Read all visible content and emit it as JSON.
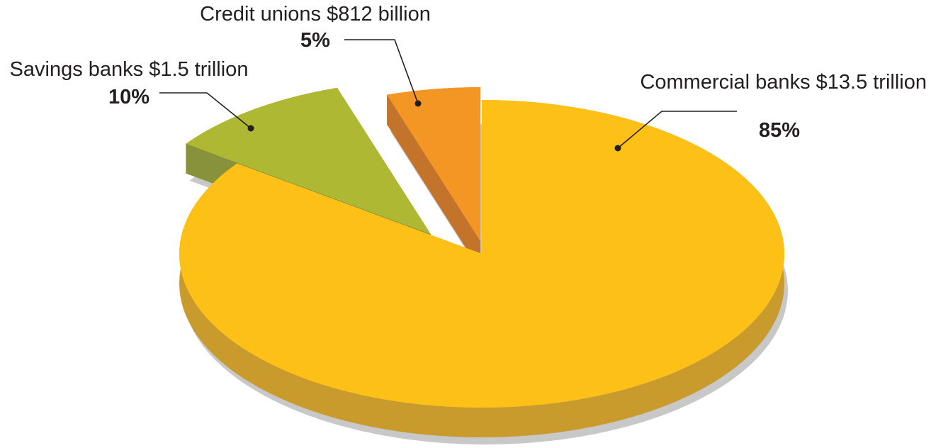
{
  "chart_data": {
    "type": "pie",
    "style": "3d-exploded",
    "slices": [
      {
        "category": "Commercial banks",
        "amount": "$13.5 trillion",
        "percent": 85,
        "percent_label": "85%",
        "color": "#fcc016",
        "side_color": "#c99a2c"
      },
      {
        "category": "Savings banks",
        "amount": "$1.5 trillion",
        "percent": 10,
        "percent_label": "10%",
        "color": "#afb833",
        "side_color": "#88923a"
      },
      {
        "category": "Credit unions",
        "amount": "$812 billion",
        "percent": 5,
        "percent_label": "5%",
        "color": "#f39623",
        "side_color": "#c4742a"
      }
    ],
    "labels": [
      {
        "text": "Commercial banks $13.5 trillion",
        "percent_text": "85%"
      },
      {
        "text": "Savings banks $1.5 trillion",
        "percent_text": "10%"
      },
      {
        "text": "Credit unions $812 billion",
        "percent_text": "5%"
      }
    ],
    "shadow_color": "#c8c8c8",
    "line_color": "#231f20"
  }
}
